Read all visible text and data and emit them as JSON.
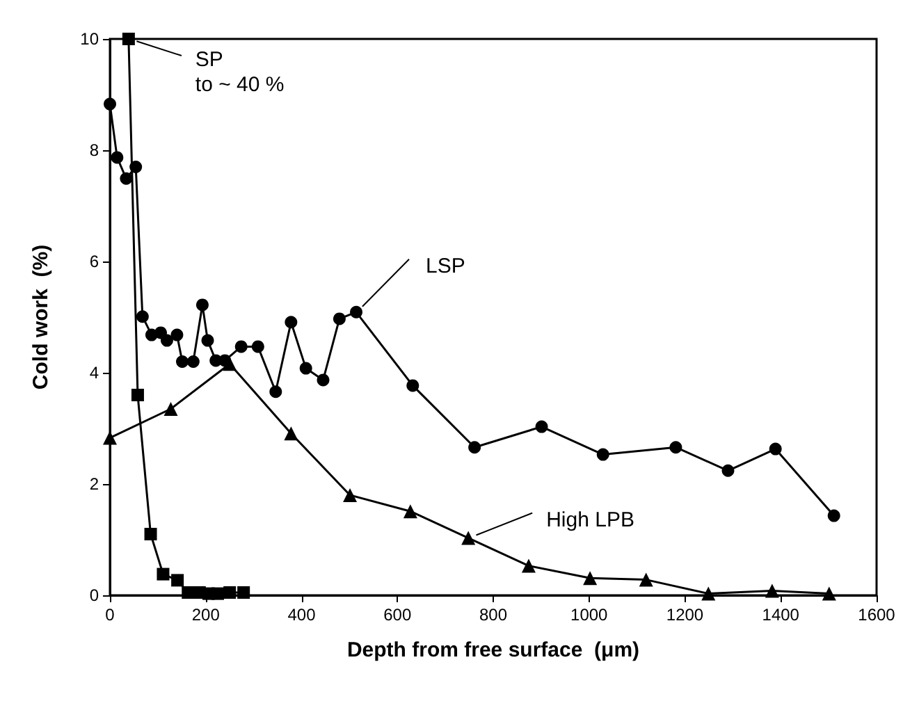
{
  "chart_data": {
    "type": "line",
    "xlabel": "Depth from free surface  (μm)",
    "ylabel": "Cold work  (%)",
    "xlim": [
      0,
      1600
    ],
    "xticks": [
      0,
      200,
      400,
      600,
      800,
      1000,
      1200,
      1400,
      1600
    ],
    "ylim": [
      0,
      10
    ],
    "yticks": [
      0,
      2,
      4,
      6,
      8,
      10
    ],
    "grid": false,
    "line_style": "solid",
    "series": [
      {
        "color": "#000000",
        "marker": "square",
        "x": [
          39,
          58,
          85,
          111,
          141,
          163,
          187,
          206,
          225,
          250,
          279
        ],
        "values": [
          10,
          3.6,
          1.1,
          0.38,
          0.27,
          0.05,
          0.05,
          0.03,
          0.03,
          0.05,
          0.05
        ]
      },
      {
        "color": "#000000",
        "marker": "circle",
        "x": [
          0,
          15,
          34,
          54,
          68,
          87,
          106,
          119,
          140,
          151,
          174,
          193,
          204,
          221,
          240,
          274,
          309,
          346,
          378,
          409,
          445,
          479,
          514,
          632,
          761,
          901,
          1029,
          1181,
          1290,
          1389,
          1511
        ],
        "values": [
          8.83,
          7.87,
          7.49,
          7.7,
          5.01,
          4.68,
          4.72,
          4.58,
          4.68,
          4.2,
          4.2,
          5.22,
          4.58,
          4.22,
          4.22,
          4.47,
          4.47,
          3.66,
          4.91,
          4.08,
          3.87,
          4.97,
          5.09,
          3.77,
          2.66,
          3.03,
          2.53,
          2.66,
          2.24,
          2.63,
          1.43
        ]
      },
      {
        "color": "#000000",
        "marker": "triangle",
        "x": [
          0,
          127,
          250,
          378,
          501,
          627,
          748,
          874,
          1002,
          1119,
          1249,
          1382,
          1501
        ],
        "values": [
          2.83,
          3.35,
          4.16,
          2.91,
          1.8,
          1.51,
          1.03,
          0.53,
          0.31,
          0.28,
          0.03,
          0.08,
          0.03
        ]
      }
    ],
    "annotations": [
      {
        "text": "SP\nto ~ 40 %",
        "x": 39,
        "y": 10
      },
      {
        "text": "LSP",
        "x": 514,
        "y": 5.09
      },
      {
        "text": "High LPB",
        "x": 748,
        "y": 1.03
      }
    ]
  }
}
